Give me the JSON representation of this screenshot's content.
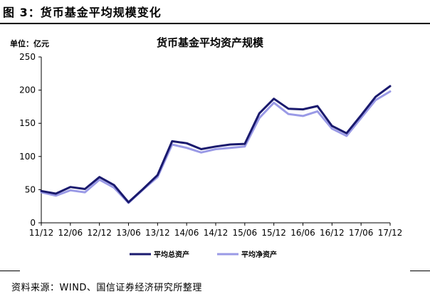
{
  "figure": {
    "caption": "图 3：货币基金平均规模变化",
    "source": "资料来源：WIND、国信证券经济研究所整理"
  },
  "chart_data": {
    "type": "line",
    "title": "货币基金平均资产规模",
    "unit_label": "单位：亿元",
    "xlabel": "",
    "ylabel": "",
    "ylim": [
      0,
      250
    ],
    "y_ticks": [
      0,
      50,
      100,
      150,
      200,
      250
    ],
    "grid": false,
    "legend_position": "bottom",
    "categories": [
      "11/12",
      "12/03",
      "12/06",
      "12/09",
      "12/12",
      "13/03",
      "13/06",
      "13/09",
      "13/12",
      "14/03",
      "14/06",
      "14/09",
      "14/12",
      "15/03",
      "15/06",
      "15/09",
      "15/12",
      "16/03",
      "16/06",
      "16/09",
      "16/12",
      "17/03",
      "17/06",
      "17/09",
      "17/12"
    ],
    "x_tick_labels": [
      "11/12",
      "12/06",
      "12/12",
      "13/06",
      "13/12",
      "14/06",
      "14/12",
      "15/06",
      "15/12",
      "16/06",
      "16/12",
      "17/06",
      "17/12"
    ],
    "series": [
      {
        "name": "平均总资产",
        "color": "#1a1a6e",
        "values": [
          48,
          44,
          54,
          51,
          69,
          57,
          31,
          51,
          72,
          123,
          120,
          111,
          115,
          118,
          119,
          165,
          187,
          172,
          171,
          176,
          146,
          135,
          162,
          190,
          206
        ]
      },
      {
        "name": "平均净资产",
        "color": "#9a9ae6",
        "values": [
          46,
          41,
          49,
          46,
          65,
          53,
          30,
          50,
          69,
          118,
          113,
          106,
          111,
          113,
          115,
          158,
          181,
          164,
          161,
          168,
          142,
          131,
          158,
          185,
          198
        ]
      }
    ]
  }
}
